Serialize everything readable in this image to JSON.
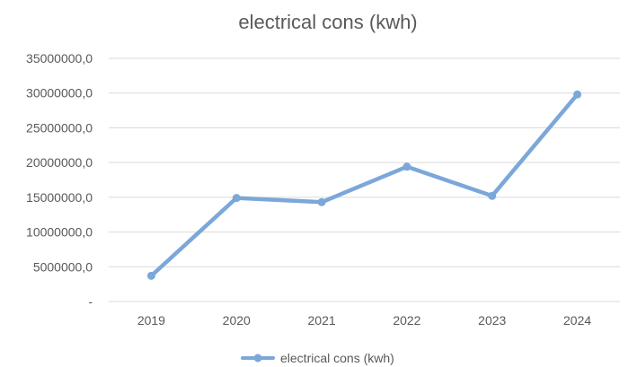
{
  "chart_data": {
    "type": "line",
    "title": "electrical cons (kwh)",
    "xlabel": "",
    "ylabel": "",
    "categories": [
      "2019",
      "2020",
      "2021",
      "2022",
      "2023",
      "2024"
    ],
    "series": [
      {
        "name": "electrical cons (kwh)",
        "values": [
          3700000,
          14900000,
          14300000,
          19400000,
          15200000,
          29800000
        ]
      }
    ],
    "ylim": [
      0,
      35000000
    ],
    "yticks": [
      {
        "value": 0,
        "label": "-"
      },
      {
        "value": 5000000,
        "label": "5000000,0"
      },
      {
        "value": 10000000,
        "label": "10000000,0"
      },
      {
        "value": 15000000,
        "label": "15000000,0"
      },
      {
        "value": 20000000,
        "label": "20000000,0"
      },
      {
        "value": 25000000,
        "label": "25000000,0"
      },
      {
        "value": 30000000,
        "label": "30000000,0"
      },
      {
        "value": 35000000,
        "label": "35000000,0"
      }
    ],
    "grid": true,
    "legend_position": "bottom",
    "colors": {
      "series": "#7ba7d9",
      "grid": "#d9d9d9",
      "text": "#595959"
    }
  }
}
